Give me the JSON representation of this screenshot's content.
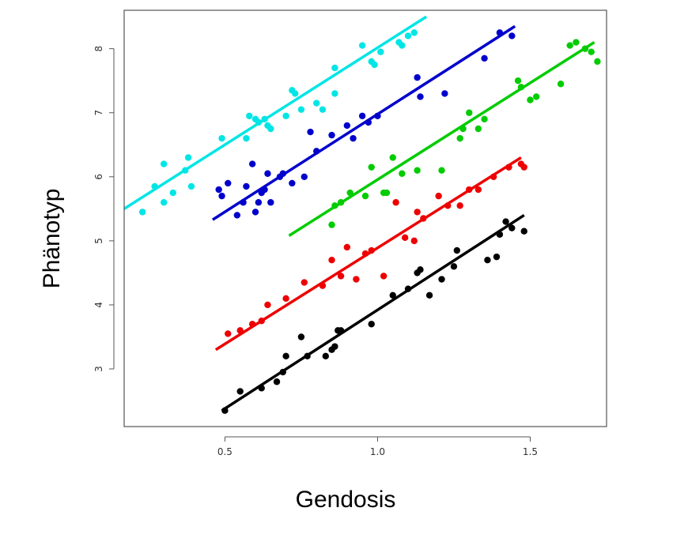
{
  "chart_data": {
    "type": "scatter",
    "title": "",
    "xlabel": "Gendosis",
    "ylabel": "Phänotyp",
    "xlim": [
      0.17,
      1.75
    ],
    "ylim": [
      2.1,
      8.6
    ],
    "xticks": [
      0.5,
      1.0,
      1.5
    ],
    "xtick_labels": [
      "0.5",
      "1.0",
      "1.5"
    ],
    "yticks": [
      3,
      4,
      5,
      6,
      7,
      8
    ],
    "ytick_labels": [
      "3",
      "4",
      "5",
      "6",
      "7",
      "8"
    ],
    "grid": false,
    "legend": "none",
    "series": [
      {
        "color": "#00e5e5",
        "trend": [
          [
            0.17,
            5.5
          ],
          [
            1.16,
            8.5
          ]
        ],
        "points": [
          [
            0.23,
            5.45
          ],
          [
            0.27,
            5.85
          ],
          [
            0.3,
            5.6
          ],
          [
            0.3,
            6.2
          ],
          [
            0.33,
            5.75
          ],
          [
            0.37,
            6.1
          ],
          [
            0.38,
            6.3
          ],
          [
            0.39,
            5.85
          ],
          [
            0.49,
            6.6
          ],
          [
            0.57,
            6.6
          ],
          [
            0.58,
            6.95
          ],
          [
            0.6,
            6.9
          ],
          [
            0.61,
            6.85
          ],
          [
            0.63,
            6.9
          ],
          [
            0.64,
            6.8
          ],
          [
            0.65,
            6.75
          ],
          [
            0.7,
            6.95
          ],
          [
            0.72,
            7.35
          ],
          [
            0.73,
            7.3
          ],
          [
            0.75,
            7.05
          ],
          [
            0.8,
            7.15
          ],
          [
            0.82,
            7.05
          ],
          [
            0.86,
            7.7
          ],
          [
            0.86,
            7.3
          ],
          [
            0.95,
            8.05
          ],
          [
            0.98,
            7.8
          ],
          [
            0.99,
            7.75
          ],
          [
            1.01,
            7.95
          ],
          [
            1.07,
            8.1
          ],
          [
            1.08,
            8.05
          ],
          [
            1.1,
            8.2
          ],
          [
            1.12,
            8.25
          ]
        ]
      },
      {
        "color": "#0000cc",
        "trend": [
          [
            0.46,
            5.33
          ],
          [
            1.45,
            8.35
          ]
        ],
        "points": [
          [
            0.48,
            5.8
          ],
          [
            0.49,
            5.7
          ],
          [
            0.51,
            5.9
          ],
          [
            0.54,
            5.4
          ],
          [
            0.56,
            5.6
          ],
          [
            0.57,
            5.85
          ],
          [
            0.59,
            6.2
          ],
          [
            0.6,
            5.45
          ],
          [
            0.61,
            5.6
          ],
          [
            0.62,
            5.75
          ],
          [
            0.63,
            5.8
          ],
          [
            0.64,
            6.05
          ],
          [
            0.65,
            5.6
          ],
          [
            0.68,
            6.0
          ],
          [
            0.69,
            6.05
          ],
          [
            0.72,
            5.9
          ],
          [
            0.76,
            6.0
          ],
          [
            0.78,
            6.7
          ],
          [
            0.8,
            6.4
          ],
          [
            0.85,
            6.65
          ],
          [
            0.9,
            6.8
          ],
          [
            0.92,
            6.6
          ],
          [
            0.95,
            6.95
          ],
          [
            0.97,
            6.85
          ],
          [
            1.0,
            6.95
          ],
          [
            1.13,
            7.55
          ],
          [
            1.14,
            7.25
          ],
          [
            1.22,
            7.3
          ],
          [
            1.35,
            7.85
          ],
          [
            1.4,
            8.25
          ],
          [
            1.44,
            8.2
          ]
        ]
      },
      {
        "color": "#00cc00",
        "trend": [
          [
            0.71,
            5.08
          ],
          [
            1.71,
            8.1
          ]
        ],
        "points": [
          [
            0.85,
            5.25
          ],
          [
            0.86,
            5.55
          ],
          [
            0.88,
            5.6
          ],
          [
            0.91,
            5.75
          ],
          [
            0.96,
            5.7
          ],
          [
            0.98,
            6.15
          ],
          [
            1.02,
            5.75
          ],
          [
            1.03,
            5.75
          ],
          [
            1.05,
            6.3
          ],
          [
            1.08,
            6.05
          ],
          [
            1.13,
            6.1
          ],
          [
            1.21,
            6.1
          ],
          [
            1.27,
            6.6
          ],
          [
            1.28,
            6.75
          ],
          [
            1.3,
            7.0
          ],
          [
            1.33,
            6.75
          ],
          [
            1.35,
            6.9
          ],
          [
            1.46,
            7.5
          ],
          [
            1.47,
            7.4
          ],
          [
            1.5,
            7.2
          ],
          [
            1.52,
            7.25
          ],
          [
            1.6,
            7.45
          ],
          [
            1.63,
            8.05
          ],
          [
            1.65,
            8.1
          ],
          [
            1.68,
            8.0
          ],
          [
            1.7,
            7.95
          ],
          [
            1.72,
            7.8
          ]
        ]
      },
      {
        "color": "#ee0000",
        "trend": [
          [
            0.47,
            3.3
          ],
          [
            1.47,
            6.3
          ]
        ],
        "points": [
          [
            0.51,
            3.55
          ],
          [
            0.55,
            3.6
          ],
          [
            0.59,
            3.7
          ],
          [
            0.62,
            3.75
          ],
          [
            0.64,
            4.0
          ],
          [
            0.7,
            4.1
          ],
          [
            0.76,
            4.35
          ],
          [
            0.82,
            4.3
          ],
          [
            0.85,
            4.7
          ],
          [
            0.88,
            4.45
          ],
          [
            0.9,
            4.9
          ],
          [
            0.93,
            4.4
          ],
          [
            0.96,
            4.8
          ],
          [
            0.98,
            4.85
          ],
          [
            1.02,
            4.45
          ],
          [
            1.06,
            5.6
          ],
          [
            1.09,
            5.05
          ],
          [
            1.12,
            5.0
          ],
          [
            1.13,
            5.45
          ],
          [
            1.15,
            5.35
          ],
          [
            1.2,
            5.7
          ],
          [
            1.23,
            5.55
          ],
          [
            1.27,
            5.55
          ],
          [
            1.3,
            5.8
          ],
          [
            1.33,
            5.8
          ],
          [
            1.38,
            6.0
          ],
          [
            1.43,
            6.15
          ],
          [
            1.47,
            6.2
          ],
          [
            1.48,
            6.15
          ]
        ]
      },
      {
        "color": "#000000",
        "trend": [
          [
            0.49,
            2.35
          ],
          [
            1.48,
            5.4
          ]
        ],
        "points": [
          [
            0.5,
            2.35
          ],
          [
            0.55,
            2.65
          ],
          [
            0.62,
            2.7
          ],
          [
            0.67,
            2.8
          ],
          [
            0.69,
            2.95
          ],
          [
            0.7,
            3.2
          ],
          [
            0.75,
            3.5
          ],
          [
            0.77,
            3.2
          ],
          [
            0.83,
            3.2
          ],
          [
            0.85,
            3.3
          ],
          [
            0.86,
            3.35
          ],
          [
            0.87,
            3.6
          ],
          [
            0.88,
            3.6
          ],
          [
            0.98,
            3.7
          ],
          [
            1.05,
            4.15
          ],
          [
            1.1,
            4.25
          ],
          [
            1.13,
            4.5
          ],
          [
            1.14,
            4.55
          ],
          [
            1.17,
            4.15
          ],
          [
            1.21,
            4.4
          ],
          [
            1.25,
            4.6
          ],
          [
            1.26,
            4.85
          ],
          [
            1.36,
            4.7
          ],
          [
            1.39,
            4.75
          ],
          [
            1.4,
            5.1
          ],
          [
            1.42,
            5.3
          ],
          [
            1.44,
            5.2
          ],
          [
            1.48,
            5.15
          ]
        ]
      }
    ]
  }
}
